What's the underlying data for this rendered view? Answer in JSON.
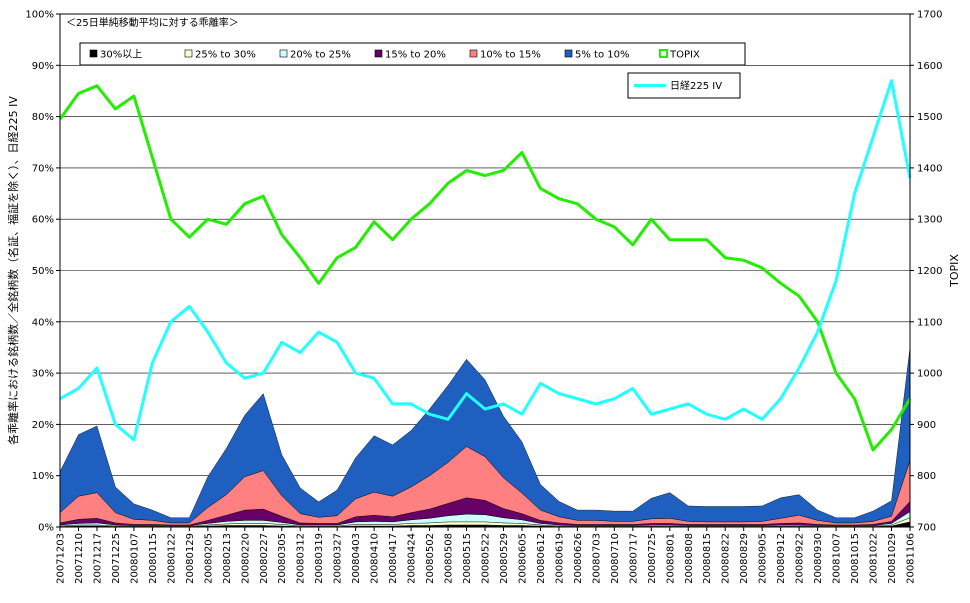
{
  "chart_data": {
    "type": "area",
    "title": "＜25日単純移動平均に対する乖離率＞",
    "ylabel_left": "各乖離率における銘柄数／全銘柄数（名証、福証を除く）、日経225 IV",
    "ylabel_right": "TOPIX",
    "ylim_left": [
      0,
      100
    ],
    "ylim_right": [
      700,
      1700
    ],
    "yticks_left": [
      "0%",
      "10%",
      "20%",
      "30%",
      "40%",
      "50%",
      "60%",
      "70%",
      "80%",
      "90%",
      "100%"
    ],
    "yticks_left_values": [
      0,
      10,
      20,
      30,
      40,
      50,
      60,
      70,
      80,
      90,
      100
    ],
    "yticks_right": [
      "700",
      "800",
      "900",
      "1000",
      "1100",
      "1200",
      "1300",
      "1400",
      "1500",
      "1600",
      "1700"
    ],
    "yticks_right_values": [
      700,
      800,
      900,
      1000,
      1100,
      1200,
      1300,
      1400,
      1500,
      1600,
      1700
    ],
    "x": [
      "20071203",
      "20071210",
      "20071217",
      "20071225",
      "20080107",
      "20080115",
      "20080122",
      "20080129",
      "20080205",
      "20080213",
      "20080220",
      "20080227",
      "20080305",
      "20080312",
      "20080319",
      "20080327",
      "20080403",
      "20080410",
      "20080417",
      "20080424",
      "20080502",
      "20080508",
      "20080515",
      "20080522",
      "20080529",
      "20080605",
      "20080612",
      "20080619",
      "20080626",
      "20080703",
      "20080710",
      "20080717",
      "20080725",
      "20080801",
      "20080808",
      "20080815",
      "20080822",
      "20080829",
      "20080905",
      "20080912",
      "20080922",
      "20080930",
      "20081007",
      "20081015",
      "20081022",
      "20081029",
      "20081106"
    ],
    "series": [
      {
        "name": "30%以上",
        "color": "#000000",
        "values": [
          0.1,
          0.2,
          0.2,
          0.1,
          0.1,
          0.1,
          0.1,
          0.1,
          0.2,
          0.3,
          0.3,
          0.3,
          0.2,
          0.1,
          0.1,
          0.1,
          0.2,
          0.2,
          0.2,
          0.3,
          0.3,
          0.4,
          0.4,
          0.4,
          0.3,
          0.3,
          0.2,
          0.1,
          0.1,
          0.1,
          0.1,
          0.1,
          0.1,
          0.1,
          0.1,
          0.1,
          0.1,
          0.1,
          0.1,
          0.1,
          0.1,
          0.1,
          0.1,
          0.1,
          0.1,
          0.2,
          1.0
        ]
      },
      {
        "name": "25% to 30%",
        "color": "#ffffcc",
        "values": [
          0.1,
          0.2,
          0.2,
          0.1,
          0.1,
          0.1,
          0.1,
          0.1,
          0.2,
          0.3,
          0.4,
          0.4,
          0.3,
          0.1,
          0.1,
          0.1,
          0.3,
          0.3,
          0.3,
          0.4,
          0.5,
          0.6,
          0.6,
          0.6,
          0.5,
          0.4,
          0.2,
          0.1,
          0.1,
          0.1,
          0.1,
          0.1,
          0.1,
          0.1,
          0.1,
          0.1,
          0.1,
          0.1,
          0.1,
          0.1,
          0.1,
          0.1,
          0.1,
          0.1,
          0.1,
          0.2,
          0.8
        ]
      },
      {
        "name": "20% to 25%",
        "color": "#ccffff",
        "values": [
          0.2,
          0.3,
          0.4,
          0.2,
          0.1,
          0.1,
          0.1,
          0.1,
          0.3,
          0.5,
          0.6,
          0.6,
          0.4,
          0.2,
          0.2,
          0.2,
          0.5,
          0.6,
          0.5,
          0.7,
          0.9,
          1.2,
          1.5,
          1.4,
          1.0,
          0.7,
          0.3,
          0.2,
          0.1,
          0.1,
          0.1,
          0.1,
          0.2,
          0.2,
          0.1,
          0.1,
          0.1,
          0.1,
          0.1,
          0.2,
          0.2,
          0.1,
          0.1,
          0.1,
          0.1,
          0.3,
          1.2
        ]
      },
      {
        "name": "15% to 20%",
        "color": "#660066",
        "values": [
          0.4,
          0.8,
          0.9,
          0.4,
          0.2,
          0.2,
          0.1,
          0.1,
          0.6,
          1.2,
          2.0,
          2.2,
          1.2,
          0.4,
          0.3,
          0.3,
          1.0,
          1.2,
          1.0,
          1.4,
          1.8,
          2.4,
          3.2,
          2.8,
          1.8,
          1.2,
          0.6,
          0.4,
          0.2,
          0.2,
          0.2,
          0.2,
          0.3,
          0.3,
          0.2,
          0.2,
          0.2,
          0.2,
          0.2,
          0.3,
          0.4,
          0.2,
          0.1,
          0.1,
          0.2,
          0.4,
          2.0
        ]
      },
      {
        "name": "10% to 15%",
        "color": "#ff8080",
        "values": [
          2.0,
          4.5,
          5.0,
          2.0,
          1.0,
          0.8,
          0.4,
          0.4,
          2.5,
          4.0,
          6.5,
          7.5,
          4.0,
          1.8,
          1.2,
          1.5,
          3.5,
          4.5,
          4.0,
          5.0,
          6.5,
          8.0,
          10.0,
          8.5,
          6.0,
          4.0,
          2.0,
          1.2,
          0.8,
          0.8,
          0.6,
          0.6,
          0.9,
          1.0,
          0.6,
          0.5,
          0.5,
          0.5,
          0.6,
          1.0,
          1.5,
          0.8,
          0.4,
          0.4,
          0.6,
          1.0,
          8.0
        ]
      },
      {
        "name": "5% to 10%",
        "color": "#1f5fbf",
        "values": [
          8,
          12,
          13,
          5,
          3,
          2,
          1,
          1,
          6,
          9,
          12,
          15,
          8,
          5,
          3,
          5,
          8,
          11,
          10,
          11,
          13,
          15,
          17,
          15,
          12,
          10,
          5,
          3,
          2,
          2,
          2,
          2,
          4,
          5,
          3,
          3,
          3,
          3,
          3,
          4,
          4,
          2,
          1,
          1,
          2,
          3,
          22
        ]
      }
    ],
    "lines": [
      {
        "name": "TOPIX",
        "color": "#22ee00",
        "axis": "right",
        "values": [
          1495,
          1545,
          1560,
          1515,
          1540,
          1420,
          1300,
          1265,
          1300,
          1290,
          1330,
          1345,
          1270,
          1225,
          1175,
          1225,
          1245,
          1295,
          1260,
          1300,
          1330,
          1370,
          1395,
          1385,
          1395,
          1430,
          1360,
          1340,
          1330,
          1300,
          1285,
          1250,
          1300,
          1260,
          1260,
          1260,
          1225,
          1220,
          1205,
          1175,
          1150,
          1100,
          1000,
          950,
          850,
          890,
          950
        ]
      },
      {
        "name": "日経225 IV",
        "color": "#22ffff",
        "axis": "left",
        "values": [
          25,
          27,
          31,
          20,
          17,
          32,
          40,
          43,
          38,
          32,
          29,
          30,
          36,
          34,
          38,
          36,
          30,
          29,
          24,
          24,
          22,
          21,
          26,
          23,
          24,
          22,
          28,
          26,
          25,
          24,
          25,
          27,
          22,
          23,
          24,
          22,
          21,
          23,
          21,
          25,
          31,
          38,
          48,
          65,
          76,
          87,
          68
        ]
      }
    ],
    "legend": {
      "location": "top-left",
      "ncol": 7
    },
    "legend_iv": {
      "location": "top-right"
    },
    "grid": true
  }
}
